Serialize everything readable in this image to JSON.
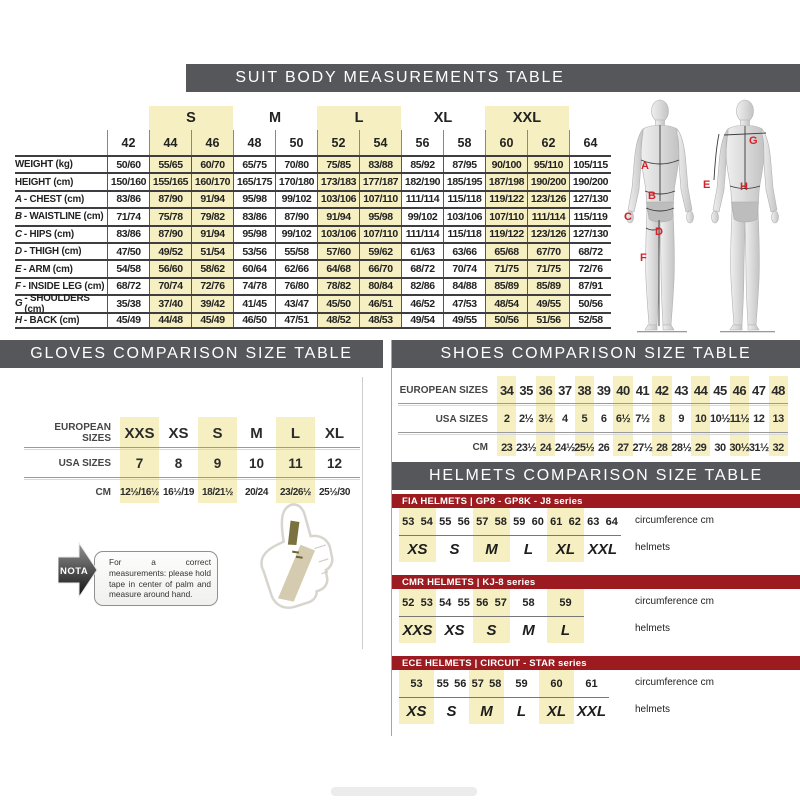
{
  "colors": {
    "header_bar": "#56575B",
    "highlight_yellow": "#F5EFC1",
    "band_red": "#9B1B20",
    "figure_label_red": "#D2232A"
  },
  "suit": {
    "title": "SUIT BODY MEASUREMENTS TABLE",
    "size_groups": [
      {
        "label": "",
        "cols": 1,
        "highlight": false
      },
      {
        "label": "S",
        "cols": 2,
        "highlight": true
      },
      {
        "label": "M",
        "cols": 2,
        "highlight": false
      },
      {
        "label": "L",
        "cols": 2,
        "highlight": true
      },
      {
        "label": "XL",
        "cols": 2,
        "highlight": false
      },
      {
        "label": "XXL",
        "cols": 2,
        "highlight": true
      },
      {
        "label": "",
        "cols": 1,
        "highlight": false
      }
    ],
    "columns": [
      "42",
      "44",
      "46",
      "48",
      "50",
      "52",
      "54",
      "56",
      "58",
      "60",
      "62",
      "64"
    ],
    "rows": [
      {
        "prefix": "",
        "label": "WEIGHT (kg)",
        "values": [
          "50/60",
          "55/65",
          "60/70",
          "65/75",
          "70/80",
          "75/85",
          "83/88",
          "85/92",
          "87/95",
          "90/100",
          "95/110",
          "105/115"
        ]
      },
      {
        "prefix": "",
        "label": "HEIGHT (cm)",
        "values": [
          "150/160",
          "155/165",
          "160/170",
          "165/175",
          "170/180",
          "173/183",
          "177/187",
          "182/190",
          "185/195",
          "187/198",
          "190/200",
          "190/200"
        ]
      },
      {
        "prefix": "A",
        "label": "CHEST (cm)",
        "values": [
          "83/86",
          "87/90",
          "91/94",
          "95/98",
          "99/102",
          "103/106",
          "107/110",
          "111/114",
          "115/118",
          "119/122",
          "123/126",
          "127/130"
        ]
      },
      {
        "prefix": "B",
        "label": "WAISTLINE (cm)",
        "values": [
          "71/74",
          "75/78",
          "79/82",
          "83/86",
          "87/90",
          "91/94",
          "95/98",
          "99/102",
          "103/106",
          "107/110",
          "111/114",
          "115/119"
        ]
      },
      {
        "prefix": "C",
        "label": "HIPS (cm)",
        "values": [
          "83/86",
          "87/90",
          "91/94",
          "95/98",
          "99/102",
          "103/106",
          "107/110",
          "111/114",
          "115/118",
          "119/122",
          "123/126",
          "127/130"
        ]
      },
      {
        "prefix": "D",
        "label": "THIGH (cm)",
        "values": [
          "47/50",
          "49/52",
          "51/54",
          "53/56",
          "55/58",
          "57/60",
          "59/62",
          "61/63",
          "63/66",
          "65/68",
          "67/70",
          "68/72"
        ]
      },
      {
        "prefix": "E",
        "label": "ARM (cm)",
        "values": [
          "54/58",
          "56/60",
          "58/62",
          "60/64",
          "62/66",
          "64/68",
          "66/70",
          "68/72",
          "70/74",
          "71/75",
          "71/75",
          "72/76"
        ]
      },
      {
        "prefix": "F",
        "label": "INSIDE LEG (cm)",
        "values": [
          "68/72",
          "70/74",
          "72/76",
          "74/78",
          "76/80",
          "78/82",
          "80/84",
          "82/86",
          "84/88",
          "85/89",
          "85/89",
          "87/91"
        ]
      },
      {
        "prefix": "G",
        "label": "SHOULDERS (cm)",
        "values": [
          "35/38",
          "37/40",
          "39/42",
          "41/45",
          "43/47",
          "45/50",
          "46/51",
          "46/52",
          "47/53",
          "48/54",
          "49/55",
          "50/56"
        ]
      },
      {
        "prefix": "H",
        "label": "BACK (cm)",
        "values": [
          "45/49",
          "44/48",
          "45/49",
          "46/50",
          "47/51",
          "48/52",
          "48/53",
          "49/54",
          "49/55",
          "50/56",
          "51/56",
          "52/58"
        ]
      }
    ],
    "figure_labels": [
      "A",
      "B",
      "C",
      "D",
      "E",
      "F",
      "G",
      "H"
    ]
  },
  "gloves": {
    "title": "GLOVES COMPARISON SIZE TABLE",
    "rows": [
      {
        "label": "EUROPEAN SIZES",
        "values": [
          "XXS",
          "XS",
          "S",
          "M",
          "L",
          "XL"
        ]
      },
      {
        "label": "USA SIZES",
        "values": [
          "7",
          "8",
          "9",
          "10",
          "11",
          "12"
        ]
      },
      {
        "label": "CM",
        "values": [
          "12½/16½",
          "16½/19",
          "18/21½",
          "20/24",
          "23/26½",
          "25½/30"
        ]
      }
    ],
    "highlight_columns": [
      0,
      2,
      4
    ],
    "note_label": "NOTA",
    "note_text": "For a correct measurements: please hold tape in center of palm and measure around hand."
  },
  "shoes": {
    "title": "SHOES COMPARISON SIZE TABLE",
    "rows": [
      {
        "label": "EUROPEAN SIZES",
        "values": [
          "34",
          "35",
          "36",
          "37",
          "38",
          "39",
          "40",
          "41",
          "42",
          "43",
          "44",
          "45",
          "46",
          "47",
          "48"
        ]
      },
      {
        "label": "USA SIZES",
        "values": [
          "2",
          "2½",
          "3½",
          "4",
          "5",
          "6",
          "6½",
          "7½",
          "8",
          "9",
          "10",
          "10½",
          "11½",
          "12",
          "13"
        ]
      },
      {
        "label": "CM",
        "values": [
          "23",
          "23½",
          "24",
          "24½",
          "25½",
          "26",
          "27",
          "27½",
          "28",
          "28½",
          "29",
          "30",
          "30½",
          "31½",
          "32"
        ]
      }
    ],
    "highlight_columns": [
      0,
      2,
      4,
      6,
      8,
      10,
      12,
      14
    ]
  },
  "helmets": {
    "title": "HELMETS COMPARISON SIZE TABLE",
    "circumference_label": "circumference cm",
    "size_row_label": "helmets",
    "sections": [
      {
        "name": "FIA HELMETS  |  GP8 - GP8K - J8 series",
        "groups": [
          {
            "size": "XS",
            "numbers": [
              "53",
              "54"
            ],
            "highlight": true
          },
          {
            "size": "S",
            "numbers": [
              "55",
              "56"
            ],
            "highlight": false
          },
          {
            "size": "M",
            "numbers": [
              "57",
              "58"
            ],
            "highlight": true
          },
          {
            "size": "L",
            "numbers": [
              "59",
              "60"
            ],
            "highlight": false
          },
          {
            "size": "XL",
            "numbers": [
              "61",
              "62"
            ],
            "highlight": true
          },
          {
            "size": "XXL",
            "numbers": [
              "63",
              "64"
            ],
            "highlight": false
          }
        ]
      },
      {
        "name": "CMR HELMETS  |  KJ-8 series",
        "groups": [
          {
            "size": "XXS",
            "numbers": [
              "52",
              "53"
            ],
            "highlight": true
          },
          {
            "size": "XS",
            "numbers": [
              "54",
              "55"
            ],
            "highlight": false
          },
          {
            "size": "S",
            "numbers": [
              "56",
              "57"
            ],
            "highlight": true
          },
          {
            "size": "M",
            "numbers": [
              "58"
            ],
            "highlight": false
          },
          {
            "size": "L",
            "numbers": [
              "59"
            ],
            "highlight": true
          }
        ]
      },
      {
        "name": "ECE HELMETS  |  CIRCUIT - STAR series",
        "groups": [
          {
            "size": "XS",
            "numbers": [
              "53"
            ],
            "highlight": true
          },
          {
            "size": "S",
            "numbers": [
              "55",
              "56"
            ],
            "highlight": false
          },
          {
            "size": "M",
            "numbers": [
              "57",
              "58"
            ],
            "highlight": true
          },
          {
            "size": "L",
            "numbers": [
              "59"
            ],
            "highlight": false
          },
          {
            "size": "XL",
            "numbers": [
              "60"
            ],
            "highlight": true
          },
          {
            "size": "XXL",
            "numbers": [
              "61"
            ],
            "highlight": false
          }
        ]
      }
    ]
  }
}
